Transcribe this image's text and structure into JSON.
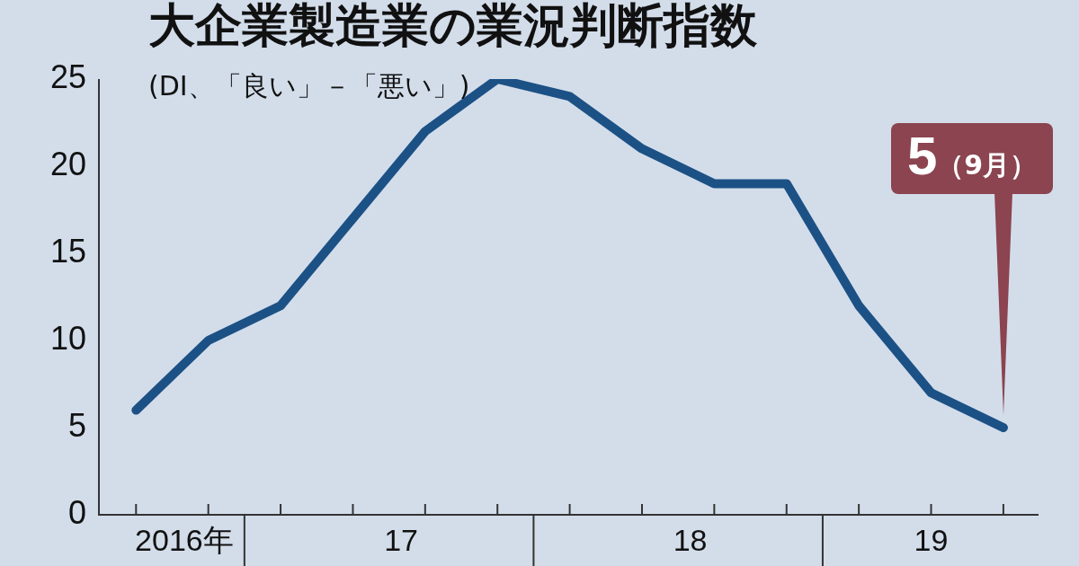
{
  "chart_data": {
    "type": "line",
    "title": "大企業製造業の業況判断指数",
    "ylabel": "(DI、「良い」－「悪い」)",
    "x": [
      "2016-09",
      "2016-12",
      "2017-03",
      "2017-06",
      "2017-09",
      "2017-12",
      "2018-03",
      "2018-06",
      "2018-09",
      "2018-12",
      "2019-03",
      "2019-06",
      "2019-09"
    ],
    "series": [
      {
        "color": "#1c5185",
        "values": [
          6,
          10,
          12,
          17,
          22,
          25,
          24,
          21,
          19,
          19,
          12,
          7,
          5
        ]
      }
    ],
    "xlim": [
      "2016-07-15",
      "2019-10-15"
    ],
    "xticks": [
      {
        "value": "2016-11",
        "label": "2016年"
      },
      {
        "value": "2017-08",
        "label": "17"
      },
      {
        "value": "2018-08",
        "label": "18"
      },
      {
        "value": "2019-06",
        "label": "19"
      }
    ],
    "ylim": [
      0,
      25
    ],
    "yticks": [
      0,
      5,
      10,
      15,
      20,
      25
    ],
    "grid": false,
    "legend": false,
    "marker": "none",
    "line_style": "solid",
    "annotations": [
      "5（9月）"
    ]
  }
}
